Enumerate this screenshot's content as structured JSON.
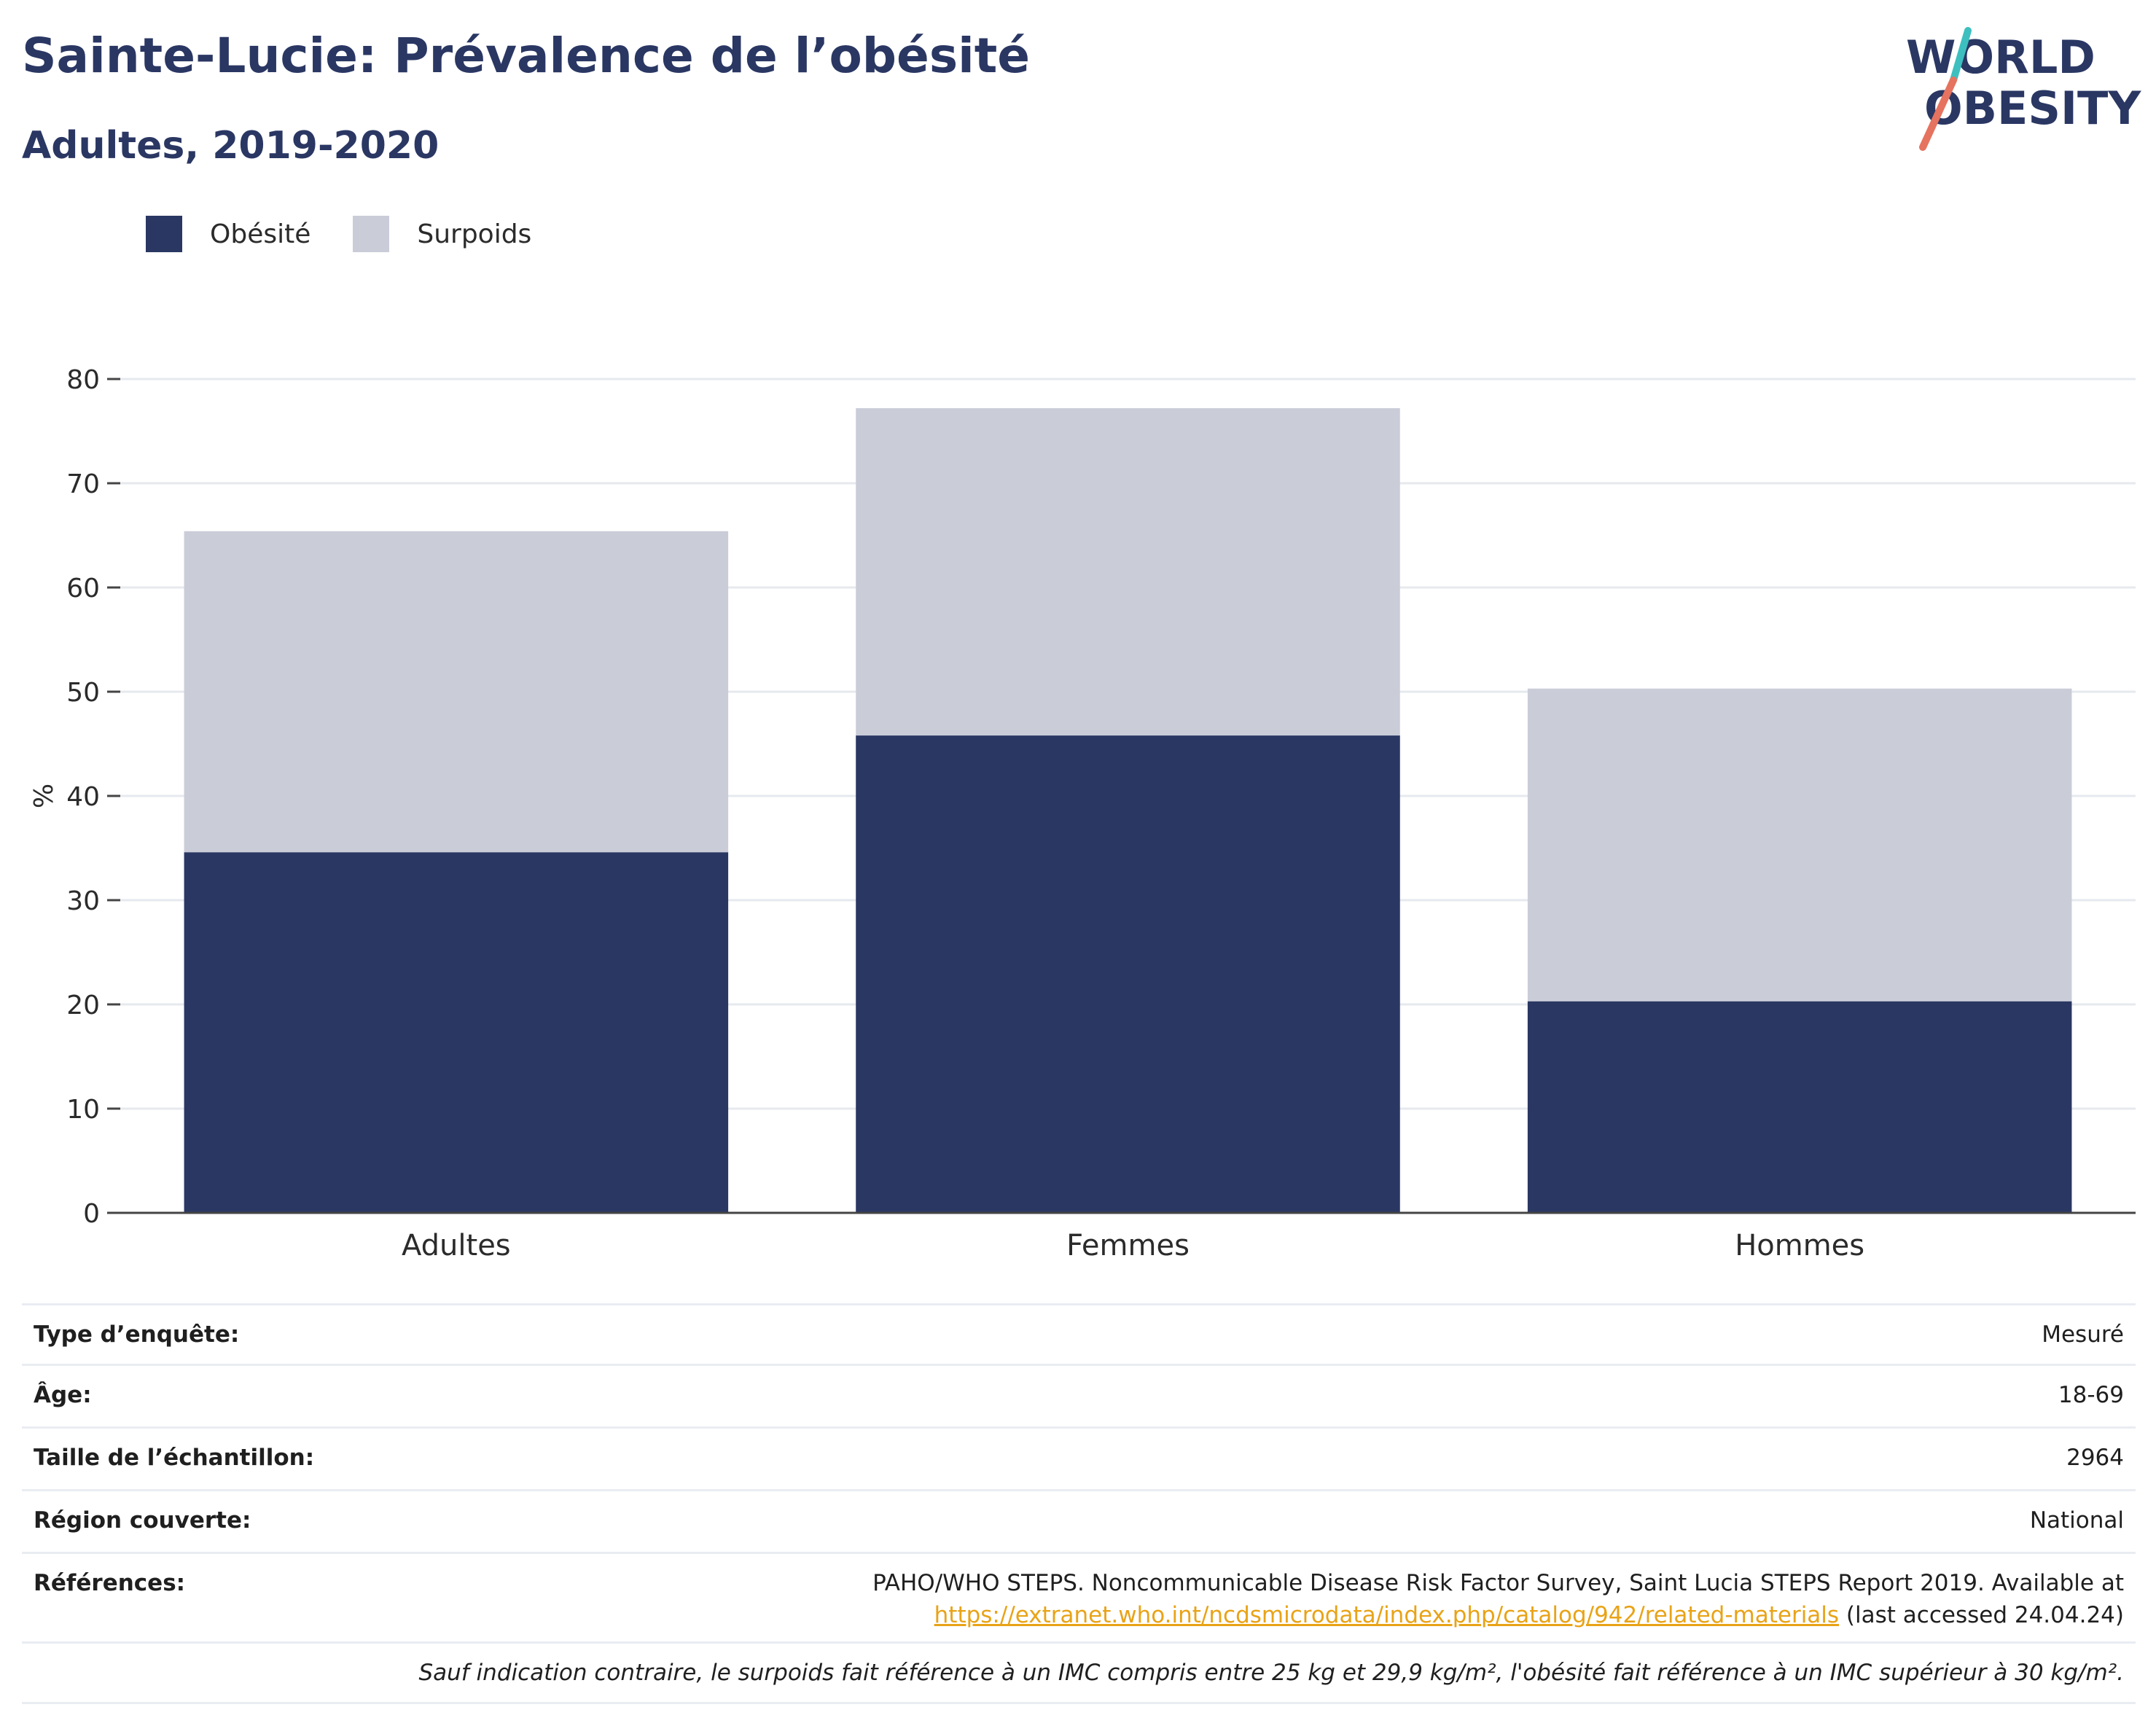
{
  "header": {
    "title": "Sainte-Lucie: Prévalence de l’obésité",
    "subtitle": "Adultes, 2019-2020"
  },
  "logo": {
    "line1": "WORLD",
    "line2": "OBESITY"
  },
  "colors": {
    "obesity": "#2a3763",
    "overweight": "#cacdd8",
    "accent_teal": "#3dbfbf",
    "accent_coral": "#e5735f",
    "link": "#e8a317"
  },
  "legend": [
    {
      "label": "Obésité",
      "color": "#2a3763"
    },
    {
      "label": "Surpoids",
      "color": "#cacdd8"
    }
  ],
  "chart_data": {
    "type": "bar",
    "stacked": true,
    "categories": [
      "Adultes",
      "Femmes",
      "Hommes"
    ],
    "series": [
      {
        "name": "Obésité",
        "values": [
          34.6,
          45.8,
          20.3
        ],
        "color": "#2a3763"
      },
      {
        "name": "Surpoids",
        "values": [
          30.8,
          31.4,
          30.0
        ],
        "color": "#cacdd8"
      }
    ],
    "ylabel": "%",
    "xlabel": "",
    "ylim": [
      0,
      80
    ],
    "yticks": [
      0,
      10,
      20,
      30,
      40,
      50,
      60,
      70,
      80
    ],
    "grid": true,
    "legend_position": "top-left"
  },
  "info": {
    "survey_type": {
      "label": "Type d’enquête:",
      "value": "Mesuré"
    },
    "age": {
      "label": "Âge:",
      "value": "18-69"
    },
    "sample_size": {
      "label": "Taille de l’échantillon:",
      "value": "2964"
    },
    "region": {
      "label": "Région couverte:",
      "value": "National"
    },
    "references": {
      "label": "Références:",
      "text": "PAHO/WHO STEPS. Noncommunicable Disease Risk Factor Survey, Saint Lucia STEPS Report 2019. Available at",
      "link": "https://extranet.who.int/ncdsmicrodata/index.php/catalog/942/related-materials",
      "suffix": " (last accessed 24.04.24)"
    },
    "note": "Sauf indication contraire, le surpoids fait référence à un IMC compris entre 25 kg et 29,9 kg/m², l'obésité fait référence à un IMC supérieur à 30 kg/m²."
  }
}
